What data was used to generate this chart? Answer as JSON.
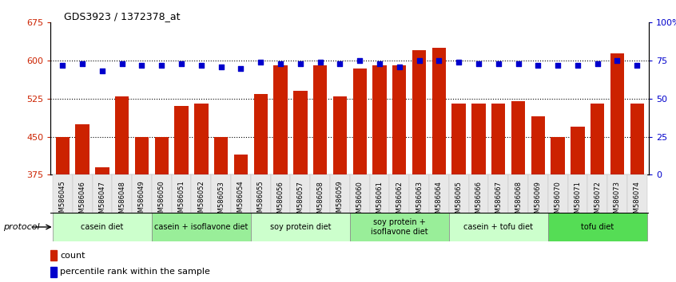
{
  "title": "GDS3923 / 1372378_at",
  "samples": [
    "GSM586045",
    "GSM586046",
    "GSM586047",
    "GSM586048",
    "GSM586049",
    "GSM586050",
    "GSM586051",
    "GSM586052",
    "GSM586053",
    "GSM586054",
    "GSM586055",
    "GSM586056",
    "GSM586057",
    "GSM586058",
    "GSM586059",
    "GSM586060",
    "GSM586061",
    "GSM586062",
    "GSM586063",
    "GSM586064",
    "GSM586065",
    "GSM586066",
    "GSM586067",
    "GSM586068",
    "GSM586069",
    "GSM586070",
    "GSM586071",
    "GSM586072",
    "GSM586073",
    "GSM586074"
  ],
  "counts": [
    450,
    475,
    390,
    530,
    450,
    450,
    510,
    515,
    450,
    415,
    535,
    590,
    540,
    590,
    530,
    585,
    590,
    590,
    620,
    625,
    515,
    515,
    515,
    520,
    490,
    450,
    470,
    515,
    615,
    515
  ],
  "percentiles": [
    72,
    73,
    68,
    73,
    72,
    72,
    73,
    72,
    71,
    70,
    74,
    73,
    73,
    74,
    73,
    75,
    73,
    71,
    75,
    75,
    74,
    73,
    73,
    73,
    72,
    72,
    72,
    73,
    75,
    72
  ],
  "ylim_left": [
    375,
    675
  ],
  "ylim_right": [
    0,
    100
  ],
  "yticks_left": [
    375,
    450,
    525,
    600,
    675
  ],
  "yticks_right": [
    0,
    25,
    50,
    75,
    100
  ],
  "ytick_labels_right": [
    "0",
    "25",
    "50",
    "75",
    "100%"
  ],
  "bar_color": "#cc2200",
  "dot_color": "#0000cc",
  "bg_color": "#ffffff",
  "protocols": [
    {
      "label": "casein diet",
      "start": 0,
      "end": 5,
      "color": "#ccffcc"
    },
    {
      "label": "casein + isoflavone diet",
      "start": 5,
      "end": 10,
      "color": "#99ee99"
    },
    {
      "label": "soy protein diet",
      "start": 10,
      "end": 15,
      "color": "#ccffcc"
    },
    {
      "label": "soy protein +\nisoflavone diet",
      "start": 15,
      "end": 20,
      "color": "#99ee99"
    },
    {
      "label": "casein + tofu diet",
      "start": 20,
      "end": 25,
      "color": "#ccffcc"
    },
    {
      "label": "tofu diet",
      "start": 25,
      "end": 30,
      "color": "#55dd55"
    }
  ],
  "protocol_label": "protocol",
  "legend_bar_label": "count",
  "legend_dot_label": "percentile rank within the sample"
}
